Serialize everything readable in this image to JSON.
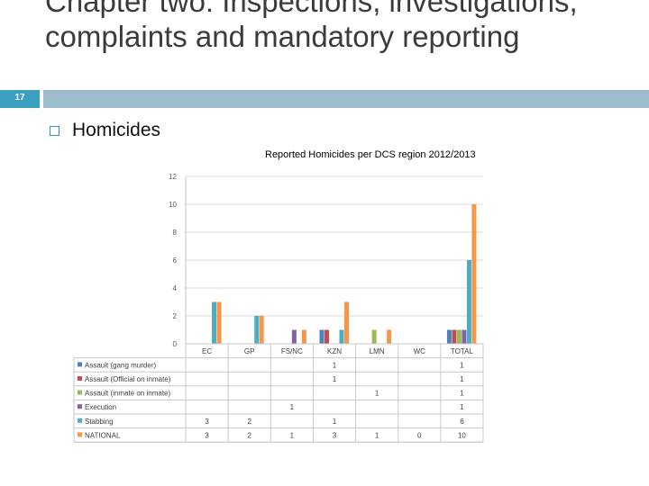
{
  "slide": {
    "title": "Chapter two: Inspections, investigations, complaints and mandatory reporting",
    "number": "17",
    "bullet": "Homicides"
  },
  "chart_data": {
    "type": "bar",
    "title": "Reported Homicides per DCS region 2012/2013",
    "categories": [
      "EC",
      "GP",
      "FS/NC",
      "KZN",
      "LMN",
      "WC",
      "TOTAL"
    ],
    "ylim": [
      0,
      12
    ],
    "yticks": [
      0,
      2,
      4,
      6,
      8,
      10,
      12
    ],
    "grid": true,
    "series": [
      {
        "name": "Assault (gang murder)",
        "color": "#4f81bd",
        "values": [
          null,
          null,
          null,
          1,
          null,
          null,
          1
        ]
      },
      {
        "name": "Assault (Official on inmate)",
        "color": "#c0504d",
        "values": [
          null,
          null,
          null,
          1,
          null,
          null,
          1
        ]
      },
      {
        "name": "Assault (inmate on inmate)",
        "color": "#9bbb59",
        "values": [
          null,
          null,
          null,
          null,
          1,
          null,
          1
        ]
      },
      {
        "name": "Execution",
        "color": "#8064a2",
        "values": [
          null,
          null,
          1,
          null,
          null,
          null,
          1
        ]
      },
      {
        "name": "Stabbing",
        "color": "#4bacc6",
        "values": [
          3,
          2,
          null,
          1,
          null,
          null,
          6
        ]
      },
      {
        "name": "NATIONAL",
        "color": "#f79646",
        "values": [
          3,
          2,
          1,
          3,
          1,
          0,
          10
        ]
      }
    ]
  }
}
